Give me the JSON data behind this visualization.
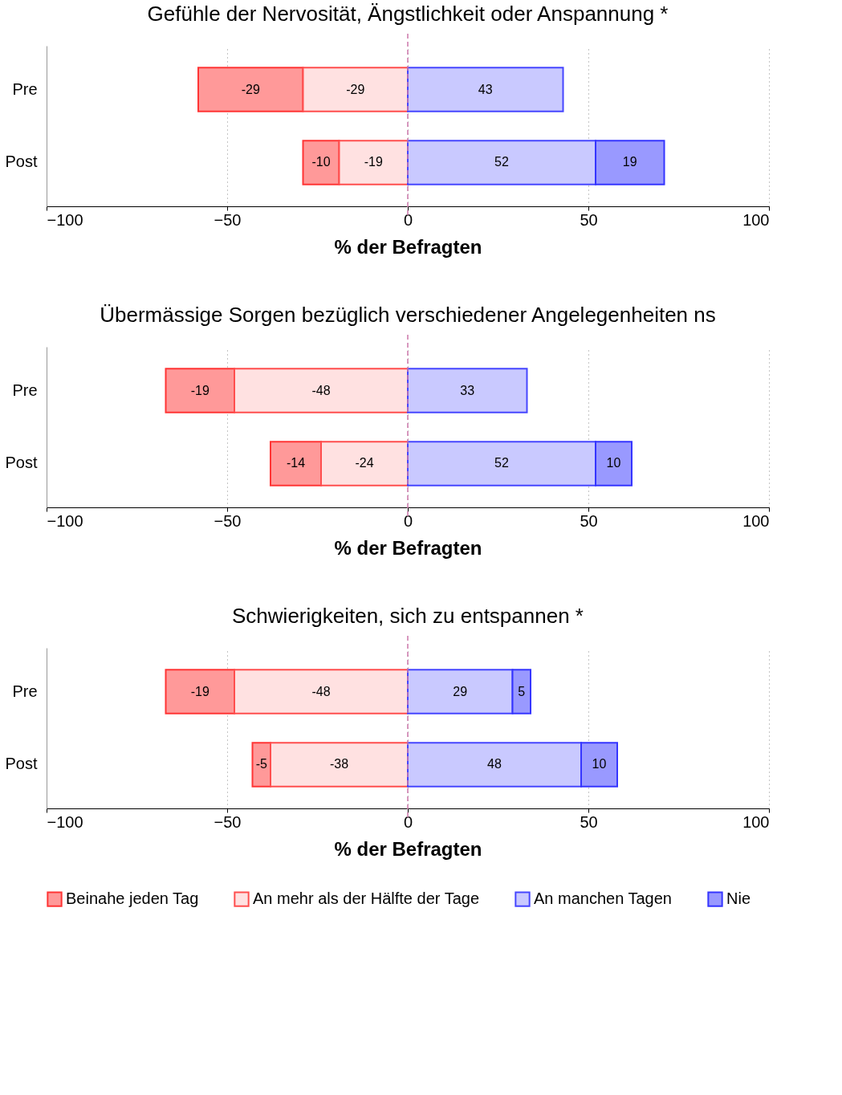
{
  "chart_data": [
    {
      "type": "bar",
      "orientation": "horizontal",
      "title": "Gefühle der Nervosität, Ängstlichkeit oder Anspannung *",
      "xlabel": "% der Befragten",
      "categories": [
        "Pre",
        "Post"
      ],
      "xlim": [
        -100,
        100
      ],
      "xticks": [
        -100,
        -50,
        0,
        50,
        100
      ],
      "grid": "x",
      "data_labels": true,
      "legend": false,
      "ref_lines": [
        {
          "axis": "x",
          "value": 0,
          "color": "#cc77aa",
          "line_style": "dashed"
        }
      ],
      "series": [
        {
          "color": "#ff9999",
          "values": [
            -29,
            -10
          ],
          "base": [
            -29,
            -19
          ]
        },
        {
          "color": "#ffe1e1",
          "values": [
            -29,
            -19
          ],
          "base": [
            0,
            0
          ]
        },
        {
          "color": "#c9c9ff",
          "values": [
            43,
            52
          ],
          "base": [
            0,
            0
          ]
        },
        {
          "color": "#9999ff",
          "values": [
            null,
            19
          ],
          "base": [
            null,
            52
          ]
        }
      ]
    },
    {
      "type": "bar",
      "orientation": "horizontal",
      "title": "Übermässige Sorgen bezüglich verschiedener Angelegenheiten ns",
      "xlabel": "% der Befragten",
      "categories": [
        "Pre",
        "Post"
      ],
      "xlim": [
        -100,
        100
      ],
      "xticks": [
        -100,
        -50,
        0,
        50,
        100
      ],
      "grid": "x",
      "data_labels": true,
      "legend": false,
      "ref_lines": [
        {
          "axis": "x",
          "value": 0,
          "color": "#cc77aa",
          "line_style": "dashed"
        }
      ],
      "series": [
        {
          "color": "#ff9999",
          "values": [
            -19,
            -14
          ],
          "base": [
            -48,
            -24
          ]
        },
        {
          "color": "#ffe1e1",
          "values": [
            -48,
            -24
          ],
          "base": [
            0,
            0
          ]
        },
        {
          "color": "#c9c9ff",
          "values": [
            33,
            52
          ],
          "base": [
            0,
            0
          ]
        },
        {
          "color": "#9999ff",
          "values": [
            null,
            10
          ],
          "base": [
            null,
            52
          ]
        }
      ]
    },
    {
      "type": "bar",
      "orientation": "horizontal",
      "title": "Schwierigkeiten, sich zu entspannen *",
      "xlabel": "% der Befragten",
      "categories": [
        "Pre",
        "Post"
      ],
      "xlim": [
        -100,
        100
      ],
      "xticks": [
        -100,
        -50,
        0,
        50,
        100
      ],
      "grid": "x",
      "data_labels": true,
      "legend": "bottom",
      "ref_lines": [
        {
          "axis": "x",
          "value": 0,
          "color": "#cc77aa",
          "line_style": "dashed"
        }
      ],
      "series": [
        {
          "name": "Beinahe jeden Tag",
          "color": "#ff9999",
          "values": [
            -19,
            -5
          ],
          "base": [
            -48,
            -38
          ]
        },
        {
          "name": "An mehr als der Hälfte der Tage",
          "color": "#ffe1e1",
          "values": [
            -48,
            -38
          ],
          "base": [
            0,
            0
          ]
        },
        {
          "name": "An manchen Tagen",
          "color": "#c9c9ff",
          "values": [
            29,
            48
          ],
          "base": [
            0,
            0
          ]
        },
        {
          "name": "Nie",
          "color": "#9999ff",
          "values": [
            5,
            10
          ],
          "base": [
            29,
            48
          ]
        }
      ]
    }
  ]
}
